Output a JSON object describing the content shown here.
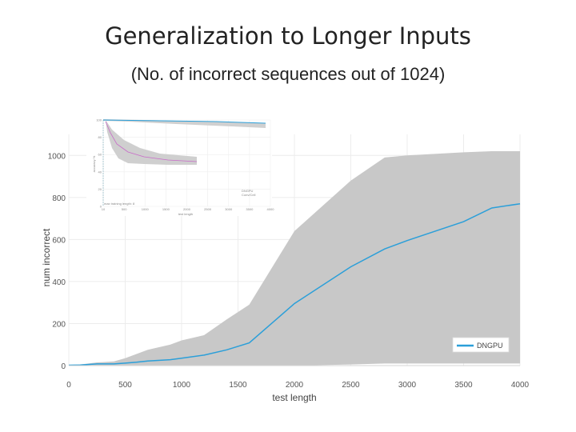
{
  "slide": {
    "title": "Generalization to Longer Inputs",
    "subtitle": "(No. of incorrect sequences out of 1024)"
  },
  "chart_data": {
    "type": "line",
    "xlabel": "test length",
    "ylabel": "num incorrect",
    "xlim": [
      0,
      4000
    ],
    "ylim": [
      0,
      1100
    ],
    "x_ticks": [
      0,
      500,
      1000,
      1500,
      2000,
      2500,
      3000,
      3500,
      4000
    ],
    "y_ticks": [
      0,
      200,
      400,
      600,
      800,
      1000
    ],
    "grid": true,
    "legend_position": "bottom-right",
    "colors": {
      "line": "#2b9fd9",
      "band": "#c8c8c8",
      "inset_line": "#c86bc8"
    },
    "series": [
      {
        "name": "DNGPU",
        "x": [
          0,
          100,
          250,
          400,
          500,
          600,
          700,
          900,
          1000,
          1200,
          1400,
          1600,
          2000,
          2500,
          2800,
          3000,
          3500,
          3750,
          4000
        ],
        "values": [
          2,
          3,
          8,
          8,
          12,
          16,
          22,
          28,
          35,
          50,
          75,
          108,
          295,
          470,
          555,
          595,
          685,
          750,
          770
        ],
        "band_upper": [
          3,
          5,
          15,
          20,
          35,
          55,
          75,
          100,
          120,
          145,
          220,
          290,
          640,
          880,
          990,
          1000,
          1015,
          1020,
          1020
        ],
        "band_lower": [
          0,
          0,
          0,
          0,
          0,
          0,
          0,
          0,
          0,
          0,
          0,
          0,
          0,
          5,
          10,
          10,
          10,
          10,
          10
        ]
      }
    ],
    "inset": {
      "xlabel": "test length",
      "ylabel": "accuracy %",
      "x_ticks": [
        "10",
        "500",
        "1000",
        "1500",
        "2000",
        "2500",
        "3000",
        "3500",
        "4000"
      ],
      "y_ticks": [
        "100",
        "80",
        "60",
        "40",
        "20",
        "0"
      ],
      "note": "max training length: 8",
      "legend_items": [
        "DNGPU",
        "Conv/Cell"
      ]
    }
  }
}
